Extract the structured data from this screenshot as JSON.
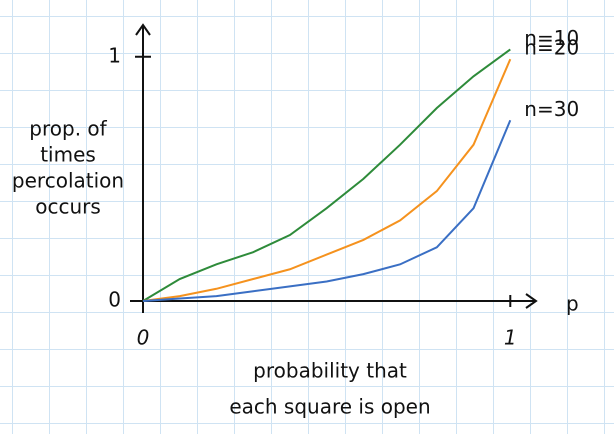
{
  "chart_data": {
    "type": "line",
    "x": [
      0,
      0.1,
      0.2,
      0.3,
      0.4,
      0.5,
      0.6,
      0.7,
      0.8,
      0.9,
      1.0
    ],
    "series": [
      {
        "name": "n=10",
        "color": "#2e8b3a",
        "values": [
          0,
          0.09,
          0.15,
          0.2,
          0.27,
          0.38,
          0.5,
          0.64,
          0.79,
          0.92,
          1.03
        ]
      },
      {
        "name": "n=20",
        "color": "#f5921e",
        "values": [
          0,
          0.02,
          0.05,
          0.09,
          0.13,
          0.19,
          0.25,
          0.33,
          0.45,
          0.64,
          0.99
        ]
      },
      {
        "name": "n=30",
        "color": "#3a6fc4",
        "values": [
          0,
          0.01,
          0.02,
          0.04,
          0.06,
          0.08,
          0.11,
          0.15,
          0.22,
          0.38,
          0.74
        ]
      }
    ],
    "xlim": [
      0,
      1.07
    ],
    "ylim": [
      0,
      1.13
    ],
    "xticks": [
      0,
      1
    ],
    "yticks": [
      0,
      1
    ],
    "x_symbol": "p",
    "xlabel": [
      "probability that",
      "each square is open"
    ],
    "ylabel": [
      "prop. of",
      "times",
      "percolation",
      "occurs"
    ]
  }
}
